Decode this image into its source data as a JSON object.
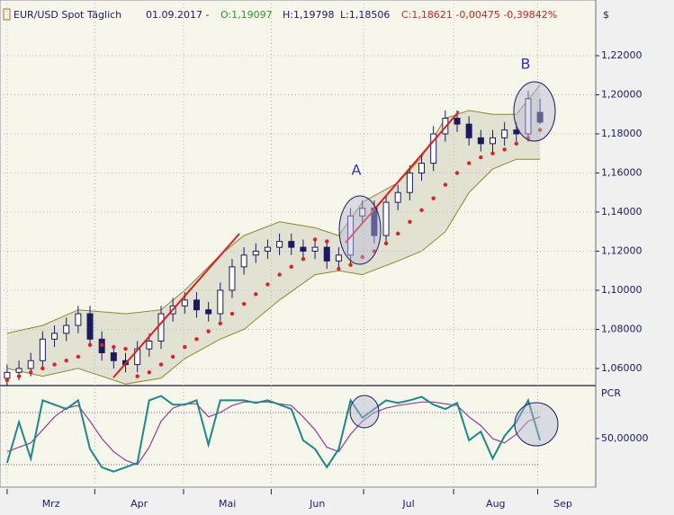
{
  "header": {
    "symbol": "EUR/USD Spot Täglich",
    "date": "01.09.2017 -",
    "open": "O:1,19097",
    "high": "H:1,19798",
    "low": "L:1,18506",
    "close": "C:1,18621 -0,00475 -0,39842%"
  },
  "chart_data": [
    {
      "type": "candlestick",
      "y_unit": "$",
      "open": [
        1.055,
        1.058,
        1.06,
        1.064,
        1.075,
        1.078,
        1.082,
        1.088,
        1.075,
        1.068,
        1.064,
        1.062,
        1.07,
        1.074,
        1.088,
        1.092,
        1.095,
        1.09,
        1.088,
        1.1,
        1.112,
        1.118,
        1.12,
        1.122,
        1.125,
        1.122,
        1.12,
        1.122,
        1.115,
        1.118,
        1.138,
        1.142,
        1.128,
        1.145,
        1.15,
        1.16,
        1.165,
        1.18,
        1.188,
        1.185,
        1.178,
        1.175,
        1.178,
        1.182,
        1.18,
        1.191
      ],
      "high": [
        1.062,
        1.064,
        1.068,
        1.079,
        1.082,
        1.086,
        1.092,
        1.092,
        1.079,
        1.072,
        1.068,
        1.074,
        1.078,
        1.092,
        1.096,
        1.099,
        1.099,
        1.094,
        1.104,
        1.116,
        1.122,
        1.124,
        1.126,
        1.129,
        1.129,
        1.126,
        1.126,
        1.126,
        1.122,
        1.142,
        1.146,
        1.146,
        1.149,
        1.154,
        1.164,
        1.169,
        1.184,
        1.192,
        1.192,
        1.189,
        1.182,
        1.182,
        1.186,
        1.186,
        1.202,
        1.198
      ],
      "low": [
        1.051,
        1.054,
        1.056,
        1.06,
        1.071,
        1.074,
        1.078,
        1.071,
        1.064,
        1.06,
        1.058,
        1.058,
        1.066,
        1.07,
        1.084,
        1.088,
        1.086,
        1.084,
        1.084,
        1.096,
        1.108,
        1.114,
        1.116,
        1.118,
        1.118,
        1.116,
        1.116,
        1.111,
        1.111,
        1.114,
        1.134,
        1.124,
        1.124,
        1.141,
        1.146,
        1.156,
        1.161,
        1.176,
        1.181,
        1.174,
        1.171,
        1.171,
        1.174,
        1.176,
        1.176,
        1.185
      ],
      "close": [
        1.058,
        1.06,
        1.064,
        1.075,
        1.078,
        1.082,
        1.088,
        1.075,
        1.068,
        1.064,
        1.062,
        1.07,
        1.074,
        1.088,
        1.092,
        1.095,
        1.09,
        1.088,
        1.1,
        1.112,
        1.118,
        1.12,
        1.122,
        1.125,
        1.122,
        1.12,
        1.122,
        1.115,
        1.118,
        1.138,
        1.142,
        1.128,
        1.145,
        1.15,
        1.16,
        1.165,
        1.18,
        1.188,
        1.185,
        1.178,
        1.175,
        1.178,
        1.182,
        1.18,
        1.198,
        1.186
      ],
      "candle_color": "#1a1a60",
      "bands": {
        "color": "#8a8a2a",
        "fill": "#e2e2d2",
        "x": [
          0,
          3,
          6,
          10,
          13,
          15,
          18,
          20,
          23,
          26,
          28,
          30,
          33,
          35,
          37,
          39,
          41,
          43,
          45
        ],
        "upper": [
          1.078,
          1.082,
          1.09,
          1.088,
          1.09,
          1.1,
          1.118,
          1.128,
          1.135,
          1.132,
          1.128,
          1.145,
          1.155,
          1.168,
          1.188,
          1.192,
          1.19,
          1.19,
          1.205
        ],
        "lower": [
          1.06,
          1.056,
          1.06,
          1.052,
          1.055,
          1.065,
          1.075,
          1.08,
          1.095,
          1.108,
          1.11,
          1.108,
          1.115,
          1.12,
          1.13,
          1.15,
          1.162,
          1.167,
          1.167
        ]
      },
      "sar": {
        "color": "#e02020",
        "values": [
          1.054,
          1.056,
          1.058,
          1.06,
          1.062,
          1.064,
          1.066,
          1.072,
          1.072,
          1.071,
          1.07,
          1.056,
          1.058,
          1.062,
          1.066,
          1.071,
          1.075,
          1.079,
          1.083,
          1.088,
          1.093,
          1.098,
          1.103,
          1.108,
          1.112,
          1.116,
          1.126,
          1.125,
          1.111,
          1.113,
          1.117,
          1.12,
          1.124,
          1.129,
          1.135,
          1.141,
          1.147,
          1.154,
          1.16,
          1.165,
          1.168,
          1.17,
          1.172,
          1.175,
          1.178,
          1.182
        ]
      },
      "annotations": [
        {
          "label": "A"
        },
        {
          "label": "B"
        }
      ],
      "xlim": [
        -0.6,
        49.7
      ],
      "xticks": [
        {
          "value": 0,
          "label": "Mrz"
        },
        {
          "value": 7.4,
          "label": "Apr"
        },
        {
          "value": 14.9,
          "label": "Mai"
        },
        {
          "value": 22.3,
          "label": "Jun"
        },
        {
          "value": 30.1,
          "label": "Jul"
        },
        {
          "value": 37.7,
          "label": "Aug"
        },
        {
          "value": 44.8,
          "label": "Sep"
        }
      ],
      "ylim": [
        1.0517,
        1.2462
      ],
      "yticks": [
        {
          "value": 1.06,
          "label": "1,06000"
        },
        {
          "value": 1.08,
          "label": "1,08000"
        },
        {
          "value": 1.1,
          "label": "1,10000"
        },
        {
          "value": 1.12,
          "label": "1,12000"
        },
        {
          "value": 1.14,
          "label": "1,14000"
        },
        {
          "value": 1.16,
          "label": "1,16000"
        },
        {
          "value": 1.18,
          "label": "1,18000"
        },
        {
          "value": 1.2,
          "label": "1,20000"
        },
        {
          "value": 1.22,
          "label": "1,22000"
        }
      ],
      "grid": true
    },
    {
      "type": "line",
      "title": "PCR",
      "series": [
        {
          "color": "#1a8a8a",
          "values": [
            22,
            69,
            27,
            94,
            89,
            84,
            94,
            38,
            17,
            12,
            17,
            22,
            94,
            99,
            89,
            89,
            94,
            43,
            94,
            94,
            94,
            91,
            94,
            89,
            84,
            48,
            38,
            17,
            38,
            94,
            74,
            84,
            94,
            91,
            94,
            98,
            89,
            84,
            91,
            48,
            58,
            27,
            53,
            69,
            94,
            48
          ]
        },
        {
          "color": "#9a3a9a",
          "values": [
            35,
            40,
            45,
            60,
            75,
            85,
            88,
            70,
            50,
            35,
            25,
            20,
            40,
            70,
            85,
            90,
            90,
            75,
            80,
            88,
            92,
            92,
            92,
            90,
            88,
            75,
            60,
            40,
            35,
            55,
            70,
            80,
            85,
            88,
            90,
            92,
            92,
            90,
            88,
            75,
            65,
            50,
            45,
            55,
            70,
            75
          ]
        }
      ],
      "levels": [
        20,
        80
      ],
      "xlim": [
        -0.6,
        49.7
      ],
      "ylim": [
        -3.8,
        108.9
      ],
      "yticks": [
        {
          "value": 50,
          "label": "50,00000"
        }
      ]
    }
  ]
}
